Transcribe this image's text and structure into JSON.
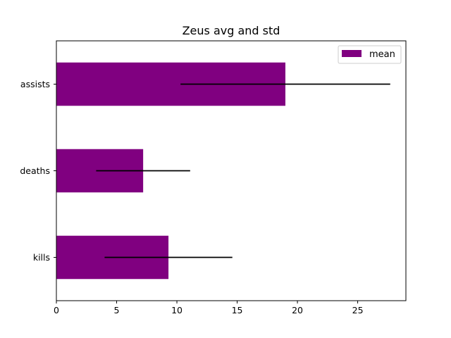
{
  "chart_data": {
    "type": "bar",
    "orientation": "horizontal",
    "title": "Zeus avg and std",
    "xlabel": "",
    "ylabel": "",
    "categories": [
      "kills",
      "deaths",
      "assists"
    ],
    "series": [
      {
        "name": "mean",
        "color": "#800080",
        "values": [
          9.3,
          7.2,
          19.0
        ],
        "error": [
          5.3,
          3.9,
          8.7
        ]
      }
    ],
    "error_bar_color": "#000000",
    "xlim": [
      0,
      29
    ],
    "xticks": [
      0,
      5,
      10,
      15,
      20,
      25
    ],
    "legend_position": "upper right",
    "grid": false
  }
}
